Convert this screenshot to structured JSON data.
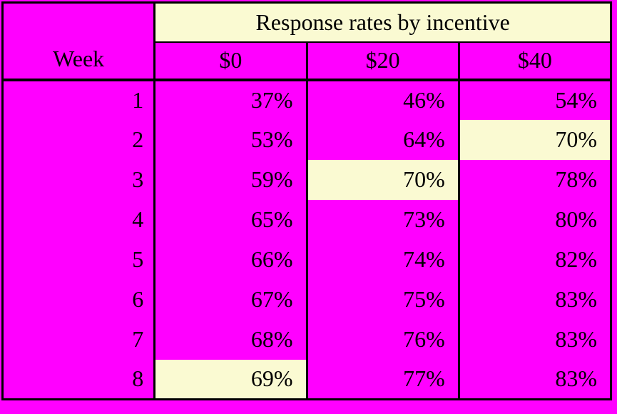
{
  "colors": {
    "magenta": "#ff00ff",
    "cream": "#fafad2",
    "border": "#000000",
    "text": "#000000"
  },
  "table": {
    "title": "Response rates by incentive",
    "corner_label": "Week",
    "columns": [
      "$0",
      "$20",
      "$40"
    ],
    "rows": [
      {
        "week": "1",
        "values": [
          "37%",
          "46%",
          "54%"
        ],
        "highlights": [
          false,
          false,
          false
        ]
      },
      {
        "week": "2",
        "values": [
          "53%",
          "64%",
          "70%"
        ],
        "highlights": [
          false,
          false,
          true
        ]
      },
      {
        "week": "3",
        "values": [
          "59%",
          "70%",
          "78%"
        ],
        "highlights": [
          false,
          true,
          false
        ]
      },
      {
        "week": "4",
        "values": [
          "65%",
          "73%",
          "80%"
        ],
        "highlights": [
          false,
          false,
          false
        ]
      },
      {
        "week": "5",
        "values": [
          "66%",
          "74%",
          "82%"
        ],
        "highlights": [
          false,
          false,
          false
        ]
      },
      {
        "week": "6",
        "values": [
          "67%",
          "75%",
          "83%"
        ],
        "highlights": [
          false,
          false,
          false
        ]
      },
      {
        "week": "7",
        "values": [
          "68%",
          "76%",
          "83%"
        ],
        "highlights": [
          false,
          false,
          false
        ]
      },
      {
        "week": "8",
        "values": [
          "69%",
          "77%",
          "83%"
        ],
        "highlights": [
          true,
          false,
          false
        ]
      }
    ]
  },
  "chart_data": {
    "type": "table",
    "title": "Response rates by incentive",
    "row_header": "Week",
    "categories": [
      1,
      2,
      3,
      4,
      5,
      6,
      7,
      8
    ],
    "series": [
      {
        "name": "$0",
        "values": [
          37,
          53,
          59,
          65,
          66,
          67,
          68,
          69
        ]
      },
      {
        "name": "$20",
        "values": [
          46,
          64,
          70,
          73,
          74,
          75,
          76,
          77
        ]
      },
      {
        "name": "$40",
        "values": [
          54,
          70,
          78,
          80,
          82,
          83,
          83,
          83
        ]
      }
    ],
    "units": "percent",
    "highlighted_cells": [
      {
        "week": 2,
        "column": "$40",
        "value": 70
      },
      {
        "week": 3,
        "column": "$20",
        "value": 70
      },
      {
        "week": 8,
        "column": "$0",
        "value": 69
      }
    ]
  }
}
